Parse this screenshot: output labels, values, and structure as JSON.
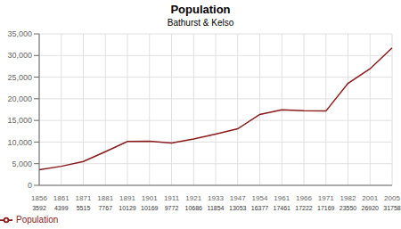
{
  "chart_data": {
    "type": "line",
    "title": "Population",
    "subtitle": "Bathurst & Kelso",
    "categories": [
      1856,
      1861,
      1871,
      1881,
      1891,
      1901,
      1911,
      1921,
      1933,
      1947,
      1954,
      1961,
      1966,
      1971,
      1982,
      2001,
      2005
    ],
    "series": [
      {
        "name": "Population",
        "color": "#8B1A1A",
        "values": [
          3592,
          4399,
          5515,
          7767,
          10129,
          10169,
          9772,
          10686,
          11854,
          13053,
          16377,
          17461,
          17222,
          17169,
          23550,
          26920,
          31758
        ]
      }
    ],
    "ylim": [
      0,
      35000
    ],
    "yticks": [
      0,
      {
        "value": 5000,
        "label": "5,000"
      },
      {
        "value": 10000,
        "label": "10,000"
      },
      {
        "value": 15000,
        "label": "15,000"
      },
      {
        "value": 20000,
        "label": "20,000"
      },
      {
        "value": 25000,
        "label": "25,000"
      },
      {
        "value": 30000,
        "label": "30,000"
      },
      {
        "value": 35000,
        "label": "35,000"
      }
    ],
    "grid": true,
    "legend": "bottom",
    "data_labels": true
  }
}
